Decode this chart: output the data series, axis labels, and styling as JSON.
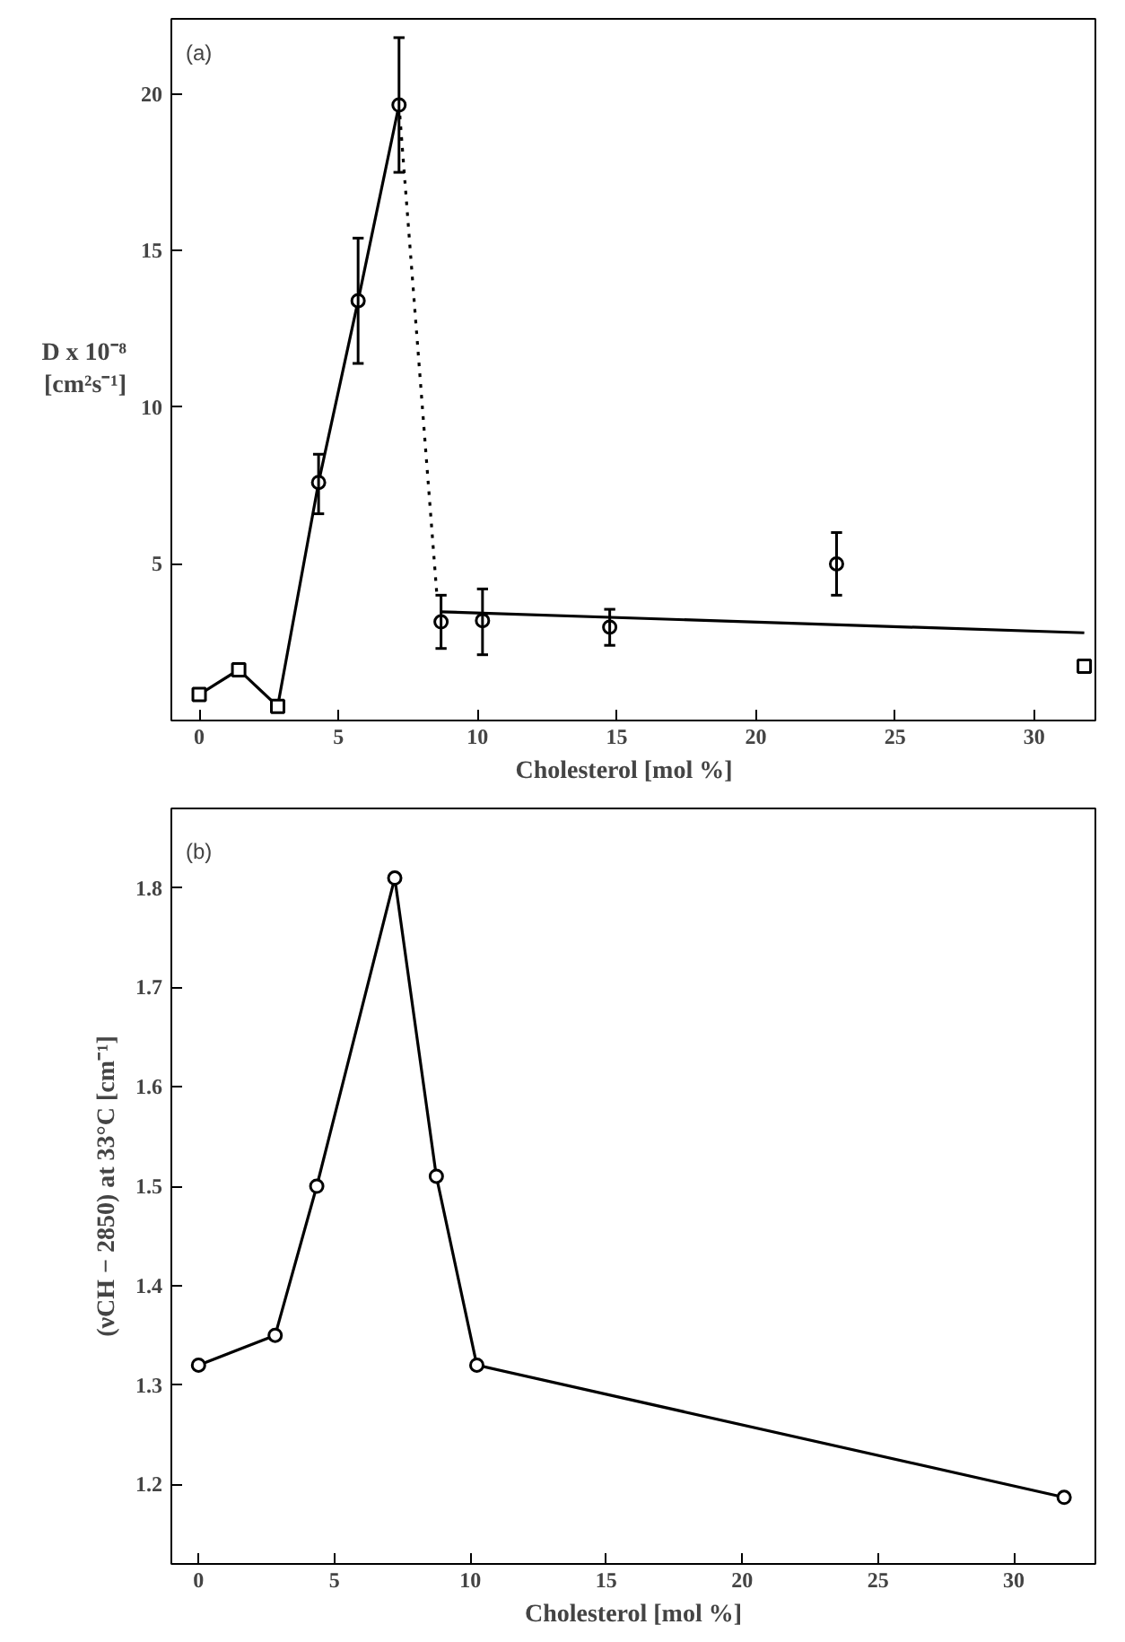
{
  "chart_data": [
    {
      "type": "scatter",
      "ylabel": "D x 10⁻⁸\n[cm²s⁻¹]",
      "xlabel": "Cholesterol    [mol %]",
      "annotations": [
        "(a)"
      ],
      "xlim": [
        -1,
        32.2
      ],
      "ylim": [
        0,
        22.4
      ],
      "xticks": [
        0,
        5,
        10,
        15,
        20,
        25,
        30
      ],
      "yticks": [
        5,
        10,
        15,
        20
      ],
      "grid": false,
      "series": [
        {
          "type": "line",
          "color": "#000000",
          "marker": "none",
          "line_style": "solid",
          "x": [
            0,
            1.42,
            2.82,
            4.29,
            5.71,
            7.18
          ],
          "values": [
            0.83,
            1.62,
            0.45,
            7.6,
            13.4,
            19.65
          ]
        },
        {
          "type": "line",
          "color": "#000000",
          "marker": "none",
          "line_style": "dotted",
          "x": [
            7.18,
            8.55
          ],
          "values": [
            19.65,
            3.9
          ]
        },
        {
          "type": "line",
          "color": "#000000",
          "marker": "none",
          "line_style": "solid",
          "x": [
            8.69,
            31.8
          ],
          "values": [
            3.47,
            2.8
          ]
        },
        {
          "type": "scatter",
          "color": "#000000",
          "marker": "square",
          "x": [
            0,
            1.42,
            2.82,
            31.8
          ],
          "values": [
            0.83,
            1.62,
            0.45,
            1.73
          ]
        },
        {
          "type": "scatter",
          "color": "#000000",
          "marker": "circle",
          "x": [
            4.29,
            5.71,
            7.18,
            8.69,
            10.18,
            14.75,
            22.9
          ],
          "values": [
            7.6,
            13.4,
            19.65,
            3.15,
            3.19,
            2.98,
            5.0
          ],
          "errors": [
            [
              6.6,
              8.5
            ],
            [
              11.4,
              15.4
            ],
            [
              17.5,
              21.8
            ],
            [
              2.3,
              4.0
            ],
            [
              2.1,
              4.2
            ],
            [
              2.4,
              3.55
            ],
            [
              4.0,
              6.0
            ]
          ]
        }
      ]
    },
    {
      "type": "line",
      "ylabel": "(νCH − 2850) at 33°C [cm⁻¹]",
      "xlabel": "Cholesterol [mol %]",
      "annotations": [
        "(b)"
      ],
      "xlim": [
        -1,
        33
      ],
      "ylim": [
        1.12,
        1.88
      ],
      "xticks": [
        0,
        5,
        10,
        15,
        20,
        25,
        30
      ],
      "yticks": [
        1.2,
        1.3,
        1.4,
        1.5,
        1.6,
        1.7,
        1.8
      ],
      "grid": false,
      "marker": "circle",
      "line_style": "solid",
      "series": [
        {
          "color": "#000000",
          "x": [
            0,
            2.82,
            4.35,
            7.22,
            8.75,
            10.24,
            31.85
          ],
          "values": [
            1.32,
            1.35,
            1.5,
            1.81,
            1.51,
            1.32,
            1.187
          ]
        }
      ]
    }
  ]
}
